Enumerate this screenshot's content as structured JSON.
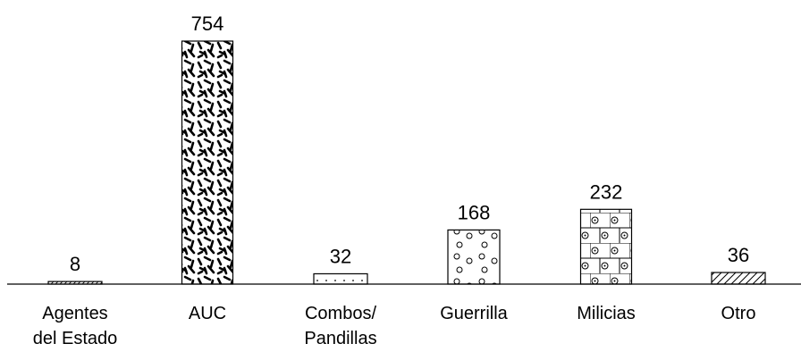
{
  "chart_data": {
    "type": "bar",
    "categories": [
      [
        "Agentes",
        "del Estado"
      ],
      [
        "AUC"
      ],
      [
        "Combos/",
        "Pandillas"
      ],
      [
        "Guerrilla"
      ],
      [
        "Milicias"
      ],
      [
        "Otro"
      ]
    ],
    "values": [
      8,
      754,
      32,
      168,
      232,
      36
    ],
    "data_labels": [
      "8",
      "754",
      "32",
      "168",
      "232",
      "36"
    ],
    "patterns": [
      "hatch-fine",
      "dashes",
      "dots",
      "circles",
      "bricks-dots",
      "hatch"
    ],
    "grid": false,
    "legend": "none"
  }
}
